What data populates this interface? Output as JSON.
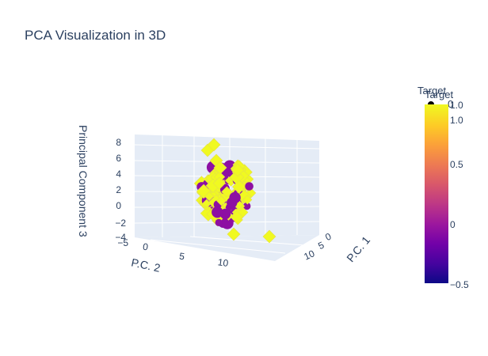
{
  "chart_data": {
    "type": "scatter",
    "title": "PCA Visualization in 3D",
    "axes": {
      "x": {
        "label": "P.C. 1",
        "ticks": [
          "0",
          "5",
          "10"
        ]
      },
      "y": {
        "label": "P.C. 2",
        "ticks": [
          "0",
          "5",
          "10"
        ]
      },
      "z": {
        "label": "Principal Component 3",
        "ticks": [
          "8",
          "6",
          "4",
          "2",
          "0",
          "−2",
          "−4"
        ],
        "range": [
          -4,
          9
        ]
      }
    },
    "extra_labels": {
      "neg_five": "−5"
    },
    "colorbar": {
      "title": "Target",
      "range": [
        -0.5,
        1.0
      ],
      "ticks": [
        "1.0",
        "0.5",
        "0",
        "−0.5"
      ]
    },
    "legend": {
      "title": "Target",
      "entries": [
        {
          "label": "0",
          "color": "#000000"
        }
      ]
    },
    "series": [
      {
        "name": "0",
        "color": "#8d0fa3"
      },
      {
        "name": "1",
        "color": "#f0f921"
      }
    ],
    "colors": {
      "background": "#e5ecf6",
      "grid": "#ffffff",
      "text": "#2a3f5f"
    }
  }
}
